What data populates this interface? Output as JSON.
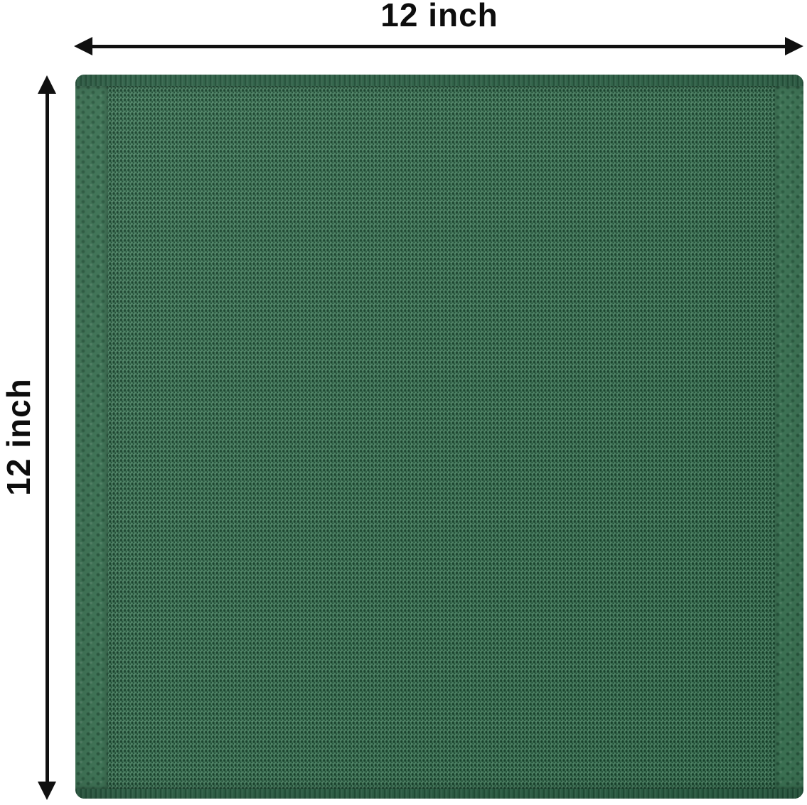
{
  "dimensions": {
    "width": {
      "label": "12 inch"
    },
    "height": {
      "label": "12 inch"
    }
  },
  "swatch": {
    "colors": {
      "fabric-base": "#45805f",
      "fabric-dot": "#16402a",
      "fabric-dot2": "#1d4a33",
      "selvage": "#3e7757",
      "hem": "#2e6448",
      "arrow": "#101010",
      "canvas-bg": "#ffffff"
    }
  }
}
